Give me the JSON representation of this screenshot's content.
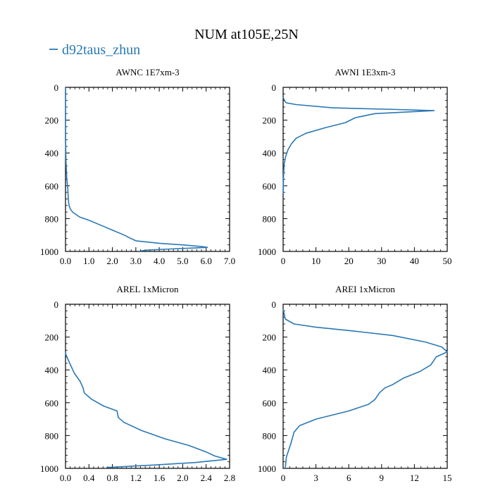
{
  "figure": {
    "title": "NUM at105E,25N",
    "legend": [
      {
        "label": "d92taus_zhun",
        "color": "#2a78b5"
      }
    ]
  },
  "chart_data": [
    {
      "type": "line",
      "title": "AWNC  1E7xm-3",
      "xlim": [
        0,
        7
      ],
      "ylim": [
        1000,
        0
      ],
      "xticks": [
        "0.0",
        "1.0",
        "2.0",
        "3.0",
        "4.0",
        "5.0",
        "6.0",
        "7.0"
      ],
      "yticks": [
        "0",
        "200",
        "400",
        "600",
        "800",
        "1000"
      ],
      "series": [
        {
          "name": "d92taus_zhun",
          "x": [
            0.0,
            0.0,
            0.02,
            0.05,
            0.1,
            0.12,
            0.15,
            0.2,
            0.3,
            0.4,
            0.6,
            1.0,
            1.5,
            2.0,
            2.5,
            2.7,
            3.0,
            4.0,
            5.0,
            5.8,
            6.05,
            5.6,
            4.5,
            3.5,
            3.2
          ],
          "y": [
            0,
            300,
            450,
            550,
            620,
            680,
            720,
            740,
            760,
            770,
            790,
            810,
            840,
            870,
            900,
            915,
            935,
            950,
            960,
            970,
            975,
            978,
            985,
            992,
            997
          ]
        }
      ]
    },
    {
      "type": "line",
      "title": "AWNI  1E3xm-3",
      "xlim": [
        0,
        50
      ],
      "ylim": [
        1000,
        0
      ],
      "xticks": [
        "0",
        "10",
        "20",
        "30",
        "40",
        "50"
      ],
      "yticks": [
        "0",
        "200",
        "400",
        "600",
        "800",
        "1000"
      ],
      "series": [
        {
          "name": "d92taus_zhun",
          "x": [
            0,
            0.5,
            1,
            4,
            15,
            35,
            46,
            28,
            22,
            19,
            13,
            7,
            4,
            2.5,
            1.5,
            0.8,
            0.3,
            0.1,
            0
          ],
          "y": [
            60,
            85,
            95,
            105,
            125,
            135,
            142,
            160,
            185,
            215,
            245,
            280,
            310,
            345,
            380,
            420,
            470,
            550,
            650
          ]
        }
      ]
    },
    {
      "type": "line",
      "title": "AREL  1xMicron",
      "xlim": [
        0,
        2.8
      ],
      "ylim": [
        1000,
        0
      ],
      "xticks": [
        "0.0",
        "0.4",
        "0.8",
        "1.2",
        "1.6",
        "2.0",
        "2.4",
        "2.8"
      ],
      "yticks": [
        "0",
        "200",
        "400",
        "600",
        "800",
        "1000"
      ],
      "series": [
        {
          "name": "d92taus_zhun",
          "x": [
            0,
            0.01,
            0.06,
            0.15,
            0.25,
            0.3,
            0.32,
            0.45,
            0.65,
            0.88,
            0.9,
            1.0,
            1.3,
            1.7,
            2.1,
            2.4,
            2.55,
            2.75,
            2.2,
            1.5,
            0.7
          ],
          "y": [
            290,
            310,
            350,
            420,
            470,
            510,
            540,
            580,
            620,
            650,
            690,
            720,
            770,
            820,
            860,
            900,
            925,
            945,
            965,
            980,
            995
          ]
        }
      ]
    },
    {
      "type": "line",
      "title": "AREI  1xMicron",
      "xlim": [
        0,
        15
      ],
      "ylim": [
        1000,
        0
      ],
      "xticks": [
        "0",
        "3",
        "6",
        "9",
        "12",
        "15"
      ],
      "yticks": [
        "0",
        "200",
        "400",
        "600",
        "800",
        "1000"
      ],
      "series": [
        {
          "name": "d92taus_zhun",
          "x": [
            0,
            0.2,
            1,
            3,
            6,
            10,
            13,
            14.5,
            15,
            14,
            13.8,
            13.5,
            12.5,
            11,
            10,
            9.3,
            8.8,
            8.4,
            7.8,
            6,
            3,
            1.5,
            1,
            0.7,
            0.3,
            0.2
          ],
          "y": [
            30,
            90,
            120,
            140,
            160,
            190,
            230,
            260,
            290,
            320,
            340,
            370,
            410,
            450,
            490,
            510,
            540,
            580,
            610,
            650,
            700,
            740,
            780,
            850,
            930,
            995
          ]
        }
      ]
    }
  ]
}
